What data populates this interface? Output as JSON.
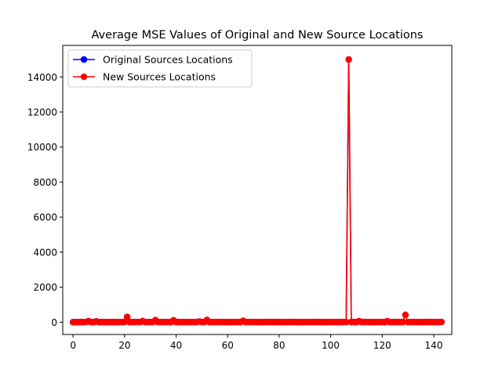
{
  "chart_data": {
    "type": "line",
    "title": "Average MSE Values of Original and New Source Locations",
    "xlabel": "",
    "ylabel": "",
    "xlim": [
      -4,
      147
    ],
    "ylim": [
      -700,
      15800
    ],
    "xticks": [
      0,
      20,
      40,
      60,
      80,
      100,
      120,
      140
    ],
    "xtick_labels": [
      "0",
      "20",
      "40",
      "60",
      "80",
      "100",
      "120",
      "140"
    ],
    "yticks": [
      0,
      2000,
      4000,
      6000,
      8000,
      10000,
      12000,
      14000
    ],
    "ytick_labels": [
      "0",
      "2000",
      "4000",
      "6000",
      "8000",
      "10000",
      "12000",
      "14000"
    ],
    "grid": false,
    "legend_position": "upper-left",
    "x": [
      0,
      1,
      2,
      3,
      4,
      5,
      6,
      7,
      8,
      9,
      10,
      11,
      12,
      13,
      14,
      15,
      16,
      17,
      18,
      19,
      20,
      21,
      22,
      23,
      24,
      25,
      26,
      27,
      28,
      29,
      30,
      31,
      32,
      33,
      34,
      35,
      36,
      37,
      38,
      39,
      40,
      41,
      42,
      43,
      44,
      45,
      46,
      47,
      48,
      49,
      50,
      51,
      52,
      53,
      54,
      55,
      56,
      57,
      58,
      59,
      60,
      61,
      62,
      63,
      64,
      65,
      66,
      67,
      68,
      69,
      70,
      71,
      72,
      73,
      74,
      75,
      76,
      77,
      78,
      79,
      80,
      81,
      82,
      83,
      84,
      85,
      86,
      87,
      88,
      89,
      90,
      91,
      92,
      93,
      94,
      95,
      96,
      97,
      98,
      99,
      100,
      101,
      102,
      103,
      104,
      105,
      106,
      107,
      108,
      109,
      110,
      111,
      112,
      113,
      114,
      115,
      116,
      117,
      118,
      119,
      120,
      121,
      122,
      123,
      124,
      125,
      126,
      127,
      128,
      129,
      130,
      131,
      132,
      133,
      134,
      135,
      136,
      137,
      138,
      139,
      140,
      141,
      142,
      143
    ],
    "series": [
      {
        "name": "Original Sources Locations",
        "color": "#0000ff",
        "values": [
          5,
          8,
          4,
          10,
          6,
          12,
          60,
          8,
          4,
          45,
          6,
          10,
          8,
          5,
          12,
          6,
          10,
          8,
          6,
          9,
          12,
          300,
          10,
          8,
          6,
          12,
          8,
          60,
          10,
          6,
          8,
          12,
          120,
          8,
          6,
          10,
          12,
          8,
          6,
          110,
          10,
          8,
          6,
          12,
          8,
          10,
          6,
          8,
          10,
          40,
          8,
          10,
          130,
          8,
          6,
          10,
          12,
          8,
          10,
          6,
          8,
          10,
          6,
          12,
          8,
          10,
          80,
          8,
          6,
          10,
          12,
          8,
          10,
          6,
          8,
          12,
          10,
          8,
          6,
          10,
          12,
          8,
          6,
          10,
          8,
          12,
          10,
          8,
          6,
          10,
          8,
          12,
          6,
          10,
          8,
          12,
          10,
          8,
          6,
          10,
          12,
          8,
          6,
          10,
          8,
          12,
          6,
          15000,
          10,
          8,
          6,
          60,
          8,
          10,
          12,
          6,
          8,
          10,
          6,
          12,
          8,
          10,
          55,
          8,
          6,
          10,
          12,
          8,
          10,
          420,
          6,
          8,
          10,
          12,
          8,
          6,
          10,
          8,
          12,
          10,
          6,
          8,
          10,
          12
        ]
      },
      {
        "name": "New Sources Locations",
        "color": "#ff0000",
        "values": [
          5,
          8,
          4,
          10,
          6,
          12,
          60,
          8,
          4,
          45,
          6,
          10,
          8,
          5,
          12,
          6,
          10,
          8,
          6,
          9,
          12,
          300,
          10,
          8,
          6,
          12,
          8,
          60,
          10,
          6,
          8,
          12,
          120,
          8,
          6,
          10,
          12,
          8,
          6,
          110,
          10,
          8,
          6,
          12,
          8,
          10,
          6,
          8,
          10,
          40,
          8,
          10,
          130,
          8,
          6,
          10,
          12,
          8,
          10,
          6,
          8,
          10,
          6,
          12,
          8,
          10,
          80,
          8,
          6,
          10,
          12,
          8,
          10,
          6,
          8,
          12,
          10,
          8,
          6,
          10,
          12,
          8,
          6,
          10,
          8,
          12,
          10,
          8,
          6,
          10,
          8,
          12,
          6,
          10,
          8,
          12,
          10,
          8,
          6,
          10,
          12,
          8,
          6,
          10,
          8,
          12,
          6,
          15000,
          10,
          8,
          6,
          60,
          8,
          10,
          12,
          6,
          8,
          10,
          6,
          12,
          8,
          10,
          55,
          8,
          6,
          10,
          12,
          8,
          10,
          420,
          6,
          8,
          10,
          12,
          8,
          6,
          10,
          8,
          12,
          10,
          6,
          8,
          10,
          12
        ]
      }
    ]
  }
}
